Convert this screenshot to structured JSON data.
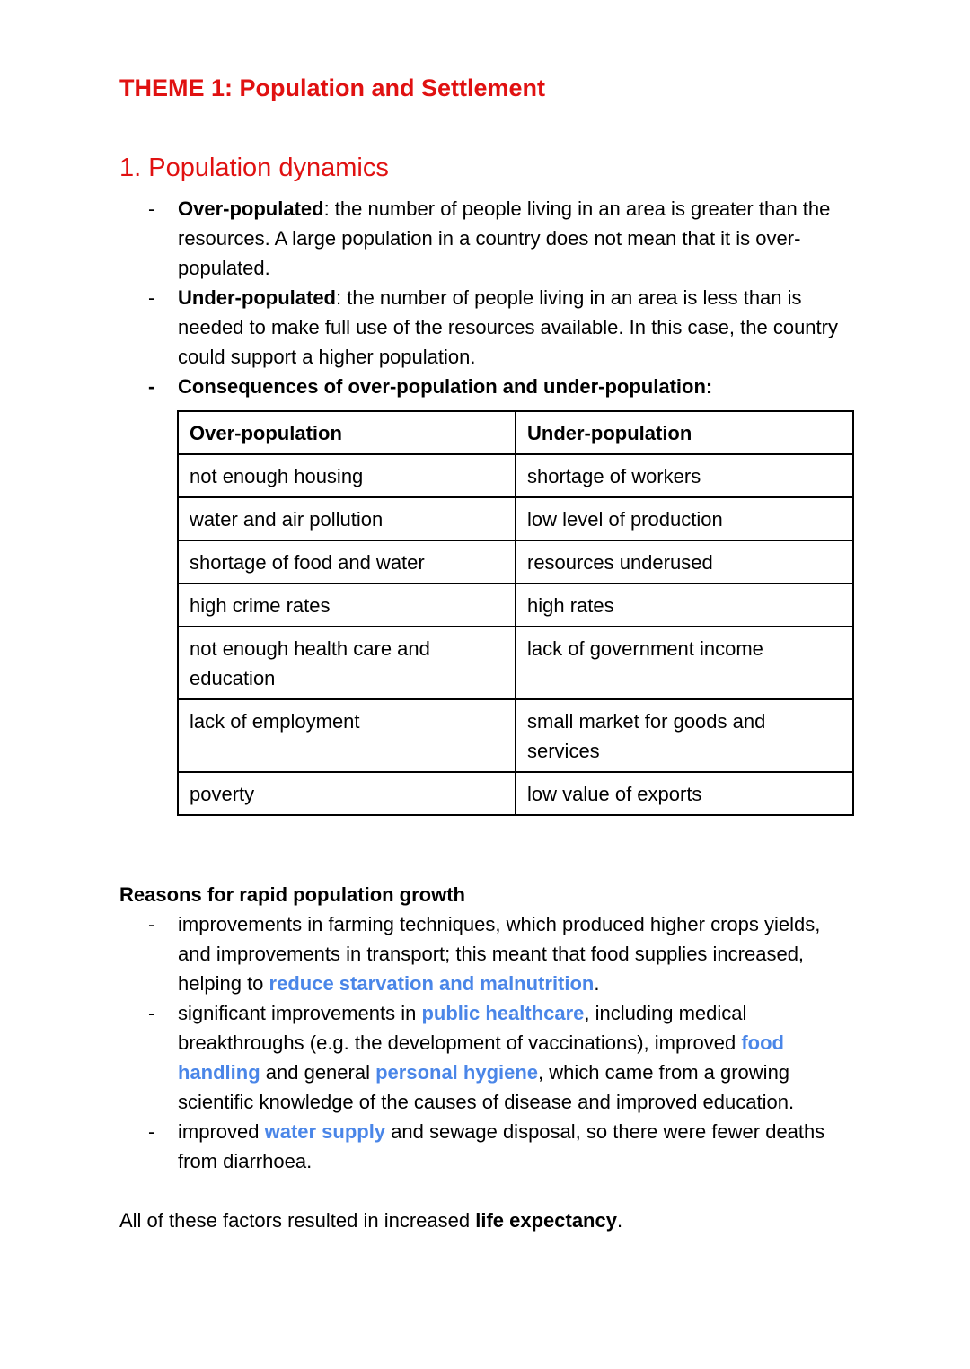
{
  "colors": {
    "red": "#e01111",
    "blue": "#4a86e8",
    "ink": "#000000",
    "paper": "#ffffff"
  },
  "header": {
    "title": "THEME 1: Population and Settlement"
  },
  "dynamics": {
    "heading": "1. Population dynamics",
    "bullets": [
      {
        "dash": "-",
        "segments": [
          {
            "text": "Over-populated",
            "bold": true
          },
          {
            "text": ": the number of people living in an area is greater than the resources. A large population in a country does not mean that it is over-populated."
          }
        ]
      },
      {
        "dash": "-",
        "segments": [
          {
            "text": "Under-populated",
            "bold": true
          },
          {
            "text": ": the number of people living in an area is less than is needed to make full use of the resources available. In this case, the country could support a higher population."
          }
        ]
      },
      {
        "dash": "-",
        "dash_bold": true,
        "segments": [
          {
            "text": "Consequences of over-population and under-population:",
            "bold": true
          }
        ]
      }
    ]
  },
  "table": {
    "headers": [
      "Over-population",
      "Under-population"
    ],
    "rows": [
      [
        "not enough housing",
        "shortage of workers"
      ],
      [
        "water and air pollution",
        "low level of production"
      ],
      [
        "shortage of food and water",
        "resources underused"
      ],
      [
        "high crime rates",
        "high rates"
      ],
      [
        "not enough health care and education",
        "lack of government income"
      ],
      [
        "lack of employment",
        "small market for goods and services"
      ],
      [
        "poverty",
        "low value of exports"
      ]
    ]
  },
  "growth": {
    "heading": "Reasons for rapid population growth",
    "bullets": [
      {
        "dash": "-",
        "segments": [
          {
            "text": "improvements in farming techniques, which produced higher crops yields, and improvements in transport; this meant that food supplies increased, helping to "
          },
          {
            "text": "reduce starvation and malnutrition",
            "blue": true
          },
          {
            "text": "."
          }
        ]
      },
      {
        "dash": "-",
        "segments": [
          {
            "text": "significant improvements in "
          },
          {
            "text": "public healthcare",
            "blue": true
          },
          {
            "text": ", including medical breakthroughs (e.g. the development of vaccinations), improved "
          },
          {
            "text": "food handling",
            "blue": true
          },
          {
            "text": " and general "
          },
          {
            "text": "personal hygiene",
            "blue": true
          },
          {
            "text": ", which came from a growing scientific knowledge of the causes of disease and improved education."
          }
        ]
      },
      {
        "dash": "-",
        "segments": [
          {
            "text": "improved "
          },
          {
            "text": "water supply",
            "blue": true
          },
          {
            "text": " and sewage disposal, so there were fewer deaths from diarrhoea."
          }
        ]
      }
    ]
  },
  "closing": {
    "segments": [
      {
        "text": "All of these factors resulted in increased "
      },
      {
        "text": "life expectancy",
        "bold": true
      },
      {
        "text": "."
      }
    ]
  }
}
